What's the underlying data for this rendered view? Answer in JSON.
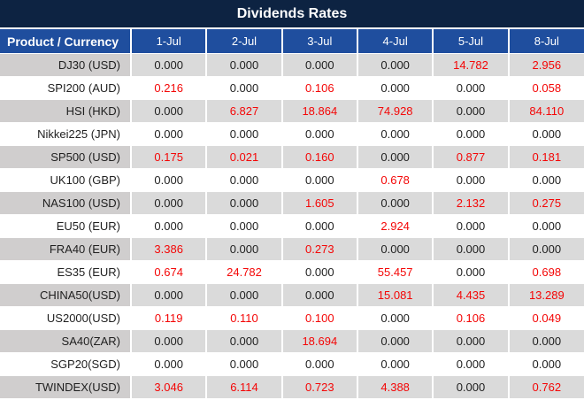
{
  "colors": {
    "title_bg": "#0d2342",
    "header_bg": "#1f4e9e",
    "stripe_value_bg": "#dadada",
    "stripe_label_bg": "#d0cece",
    "red_value": "#f40606",
    "text": "#1f1f1f"
  },
  "chart_data": {
    "type": "table",
    "title": "Dividends Rates",
    "columns": [
      "Product / Currency",
      "1-Jul",
      "2-Jul",
      "3-Jul",
      "4-Jul",
      "5-Jul",
      "8-Jul"
    ],
    "rows": [
      {
        "product": "DJ30 (USD)",
        "values": [
          "0.000",
          "0.000",
          "0.000",
          "0.000",
          "14.782",
          "2.956"
        ],
        "red": [
          false,
          false,
          false,
          false,
          true,
          true
        ]
      },
      {
        "product": "SPI200 (AUD)",
        "values": [
          "0.216",
          "0.000",
          "0.106",
          "0.000",
          "0.000",
          "0.058"
        ],
        "red": [
          true,
          false,
          true,
          false,
          false,
          true
        ]
      },
      {
        "product": "HSI (HKD)",
        "values": [
          "0.000",
          "6.827",
          "18.864",
          "74.928",
          "0.000",
          "84.110"
        ],
        "red": [
          false,
          true,
          true,
          true,
          false,
          true
        ]
      },
      {
        "product": "Nikkei225 (JPN)",
        "values": [
          "0.000",
          "0.000",
          "0.000",
          "0.000",
          "0.000",
          "0.000"
        ],
        "red": [
          false,
          false,
          false,
          false,
          false,
          false
        ]
      },
      {
        "product": "SP500 (USD)",
        "values": [
          "0.175",
          "0.021",
          "0.160",
          "0.000",
          "0.877",
          "0.181"
        ],
        "red": [
          true,
          true,
          true,
          false,
          true,
          true
        ]
      },
      {
        "product": "UK100 (GBP)",
        "values": [
          "0.000",
          "0.000",
          "0.000",
          "0.678",
          "0.000",
          "0.000"
        ],
        "red": [
          false,
          false,
          false,
          true,
          false,
          false
        ]
      },
      {
        "product": "NAS100 (USD)",
        "values": [
          "0.000",
          "0.000",
          "1.605",
          "0.000",
          "2.132",
          "0.275"
        ],
        "red": [
          false,
          false,
          true,
          false,
          true,
          true
        ]
      },
      {
        "product": "EU50 (EUR)",
        "values": [
          "0.000",
          "0.000",
          "0.000",
          "2.924",
          "0.000",
          "0.000"
        ],
        "red": [
          false,
          false,
          false,
          true,
          false,
          false
        ]
      },
      {
        "product": "FRA40 (EUR)",
        "values": [
          "3.386",
          "0.000",
          "0.273",
          "0.000",
          "0.000",
          "0.000"
        ],
        "red": [
          true,
          false,
          true,
          false,
          false,
          false
        ]
      },
      {
        "product": "ES35 (EUR)",
        "values": [
          "0.674",
          "24.782",
          "0.000",
          "55.457",
          "0.000",
          "0.698"
        ],
        "red": [
          true,
          true,
          false,
          true,
          false,
          true
        ]
      },
      {
        "product": "CHINA50(USD)",
        "values": [
          "0.000",
          "0.000",
          "0.000",
          "15.081",
          "4.435",
          "13.289"
        ],
        "red": [
          false,
          false,
          false,
          true,
          true,
          true
        ]
      },
      {
        "product": "US2000(USD)",
        "values": [
          "0.119",
          "0.110",
          "0.100",
          "0.000",
          "0.106",
          "0.049"
        ],
        "red": [
          true,
          true,
          true,
          false,
          true,
          true
        ]
      },
      {
        "product": "SA40(ZAR)",
        "values": [
          "0.000",
          "0.000",
          "18.694",
          "0.000",
          "0.000",
          "0.000"
        ],
        "red": [
          false,
          false,
          true,
          false,
          false,
          false
        ]
      },
      {
        "product": "SGP20(SGD)",
        "values": [
          "0.000",
          "0.000",
          "0.000",
          "0.000",
          "0.000",
          "0.000"
        ],
        "red": [
          false,
          false,
          false,
          false,
          false,
          false
        ]
      },
      {
        "product": "TWINDEX(USD)",
        "values": [
          "3.046",
          "6.114",
          "0.723",
          "4.388",
          "0.000",
          "0.762"
        ],
        "red": [
          true,
          true,
          true,
          true,
          false,
          true
        ]
      }
    ]
  }
}
